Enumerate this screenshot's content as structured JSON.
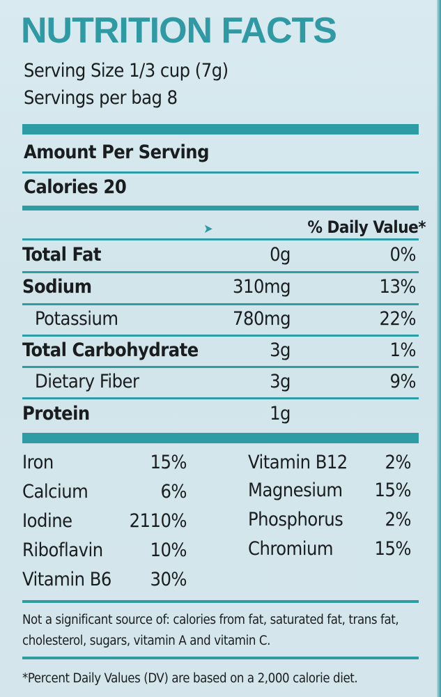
{
  "title": "NUTRITION FACTS",
  "serving_size": "Serving Size 1/3 cup (7g)",
  "servings_per": "Servings per bag 8",
  "amount_per_serving": "Amount Per Serving",
  "calories": "Calories 20",
  "dv_header": "% Daily Value*",
  "nutrients": [
    {
      "name": "Total Fat",
      "amount": "0g",
      "dv": "0%"
    },
    {
      "name": "Sodium",
      "amount": "310mg",
      "dv": "13%"
    },
    {
      "name": "Potassium",
      "amount": "780mg",
      "dv": "22%"
    },
    {
      "name": "Total Carbohydrate",
      "amount": "3g",
      "dv": "1%"
    },
    {
      "name": "Dietary Fiber",
      "amount": "3g",
      "dv": "9%"
    },
    {
      "name": "Protein",
      "amount": "1g",
      "dv": ""
    }
  ],
  "vitamins_left": [
    {
      "name": "Iron",
      "value": "15%"
    },
    {
      "name": "Calcium",
      "value": "6%"
    },
    {
      "name": "Iodine",
      "value": "2110%"
    },
    {
      "name": "Riboflavin",
      "value": "10%"
    },
    {
      "name": "Vitamin B6",
      "value": "30%"
    }
  ],
  "vitamins_right": [
    {
      "name": "Vitamin B12",
      "value": "2%"
    },
    {
      "name": "Magnesium",
      "value": "15%"
    },
    {
      "name": "Phosphorus",
      "value": "2%"
    },
    {
      "name": "Chromium",
      "value": "15%"
    }
  ],
  "footnote_line1": "Not a significant source of: calories from fat, saturated fat, trans fat,",
  "footnote_line2": "cholesterol, sugars, vitamin A and vitamin C.",
  "dv_note": "*Percent Daily Values (DV) are based on a 2,000 calorie diet.",
  "colors": {
    "accent": "#2e9ca4",
    "text": "#1a1d1f",
    "background": "#d4e6ec"
  }
}
